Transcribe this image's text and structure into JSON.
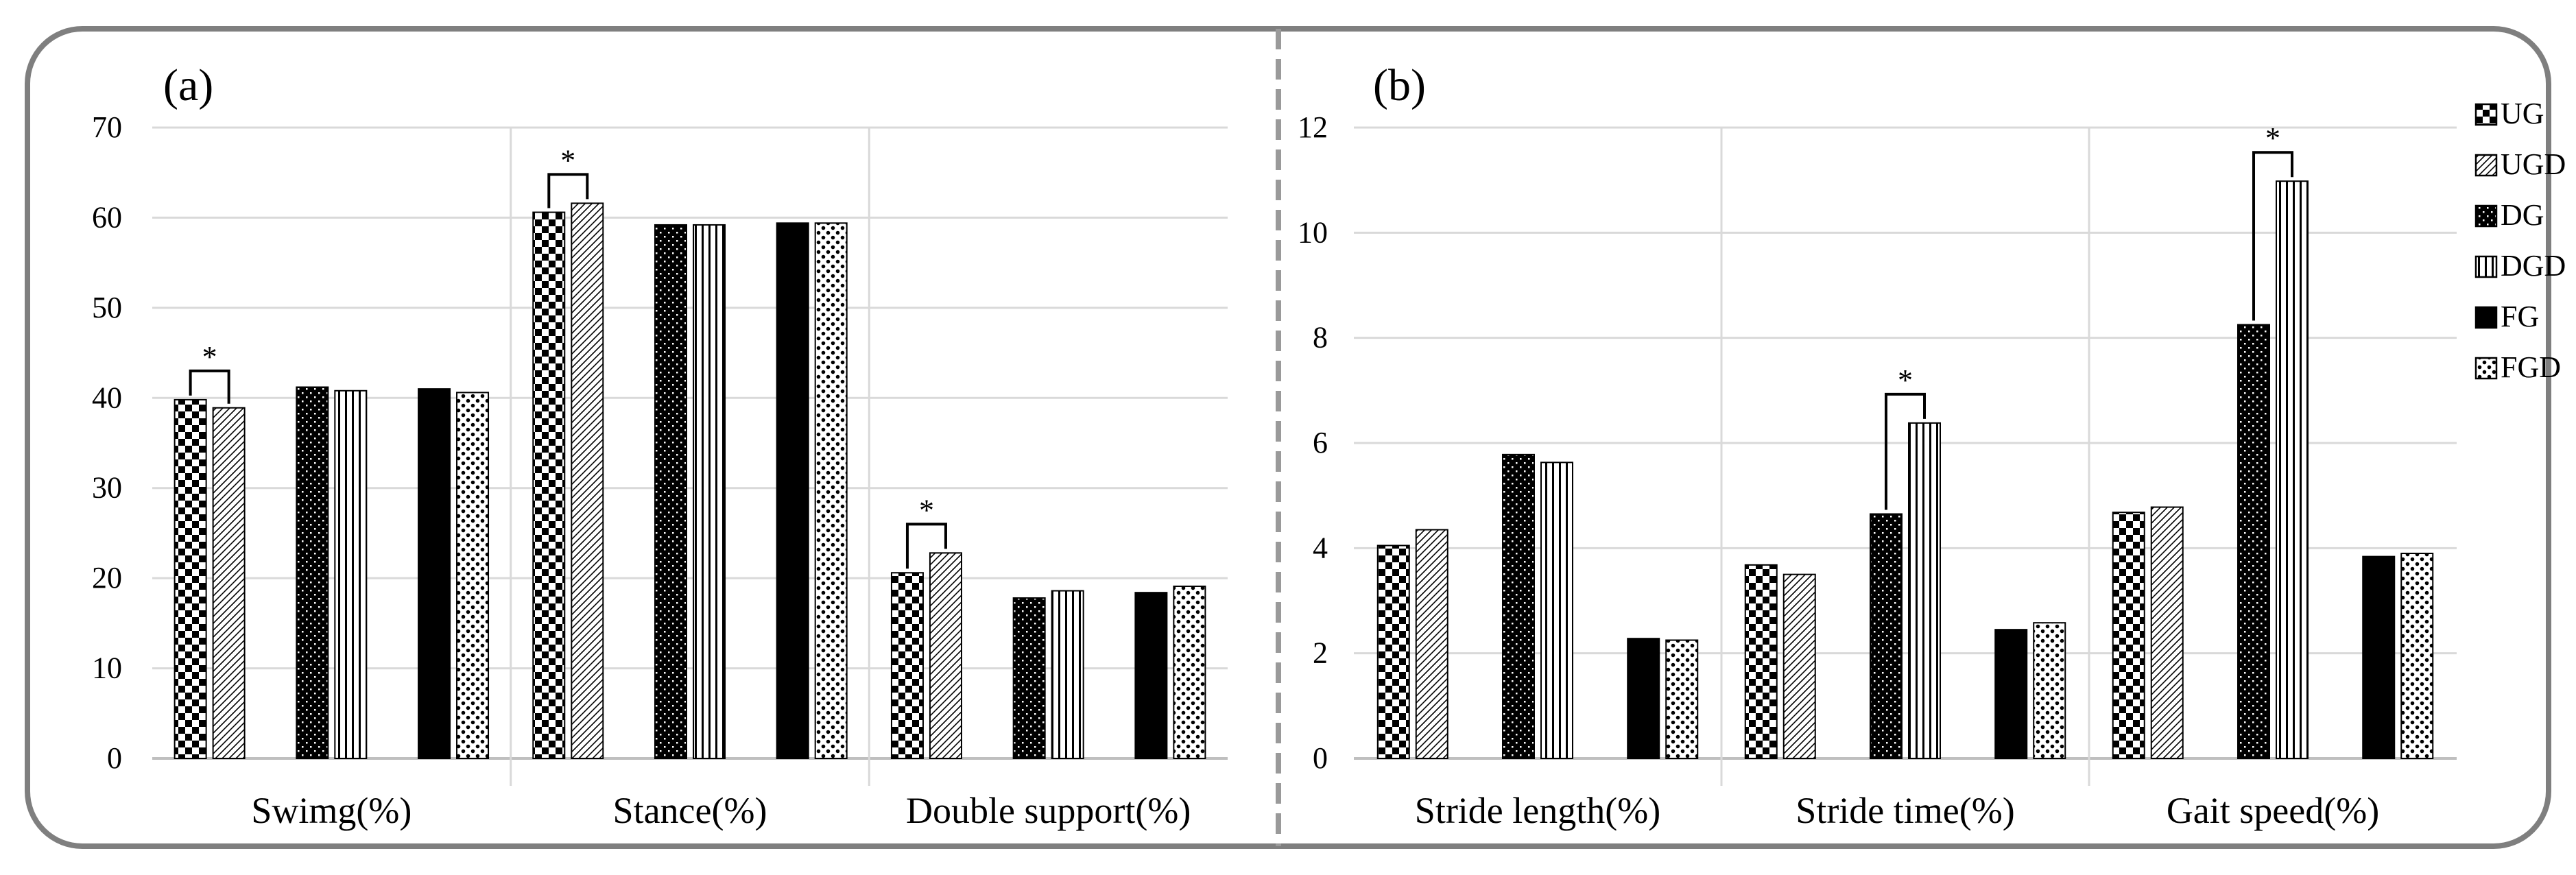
{
  "chart_data": [
    {
      "panel_label": "(a)",
      "type": "bar",
      "categories": [
        "Swimg(%)",
        "Stance(%)",
        "Double support(%)"
      ],
      "ylim": [
        0,
        70
      ],
      "yticks": [
        0,
        10,
        20,
        30,
        40,
        50,
        60,
        70
      ],
      "grid": true,
      "series": [
        {
          "name": "UG",
          "values": [
            39.8,
            60.6,
            20.6
          ]
        },
        {
          "name": "UGD",
          "values": [
            38.9,
            61.6,
            22.8
          ]
        },
        {
          "name": "DG",
          "values": [
            41.2,
            59.2,
            17.8
          ]
        },
        {
          "name": "DGD",
          "values": [
            40.8,
            59.2,
            18.6
          ]
        },
        {
          "name": "FG",
          "values": [
            41.0,
            59.4,
            18.4
          ]
        },
        {
          "name": "FGD",
          "values": [
            40.6,
            59.4,
            19.1
          ]
        }
      ],
      "significance": [
        {
          "category": 0,
          "pair": [
            "UG",
            "UGD"
          ],
          "label": "*"
        },
        {
          "category": 1,
          "pair": [
            "UG",
            "UGD"
          ],
          "label": "*"
        },
        {
          "category": 2,
          "pair": [
            "UG",
            "UGD"
          ],
          "label": "*"
        }
      ]
    },
    {
      "panel_label": "(b)",
      "type": "bar",
      "categories": [
        "Stride length(%)",
        "Stride time(%)",
        "Gait speed(%)"
      ],
      "ylim": [
        0,
        12
      ],
      "yticks": [
        0,
        2,
        4,
        6,
        8,
        10,
        12
      ],
      "grid": true,
      "legend_position": "right",
      "series": [
        {
          "name": "UG",
          "values": [
            4.05,
            3.68,
            4.68
          ]
        },
        {
          "name": "UGD",
          "values": [
            4.35,
            3.5,
            4.78
          ]
        },
        {
          "name": "DG",
          "values": [
            5.78,
            4.65,
            8.25
          ]
        },
        {
          "name": "DGD",
          "values": [
            5.63,
            6.38,
            10.98
          ]
        },
        {
          "name": "FG",
          "values": [
            2.28,
            2.45,
            3.84
          ]
        },
        {
          "name": "FGD",
          "values": [
            2.25,
            2.58,
            3.9
          ]
        }
      ],
      "significance": [
        {
          "category": 1,
          "pair": [
            "DG",
            "DGD"
          ],
          "label": "*"
        },
        {
          "category": 2,
          "pair": [
            "DG",
            "DGD"
          ],
          "label": "*"
        }
      ]
    }
  ],
  "legend": [
    "UG",
    "UGD",
    "DG",
    "DGD",
    "FG",
    "FGD"
  ]
}
